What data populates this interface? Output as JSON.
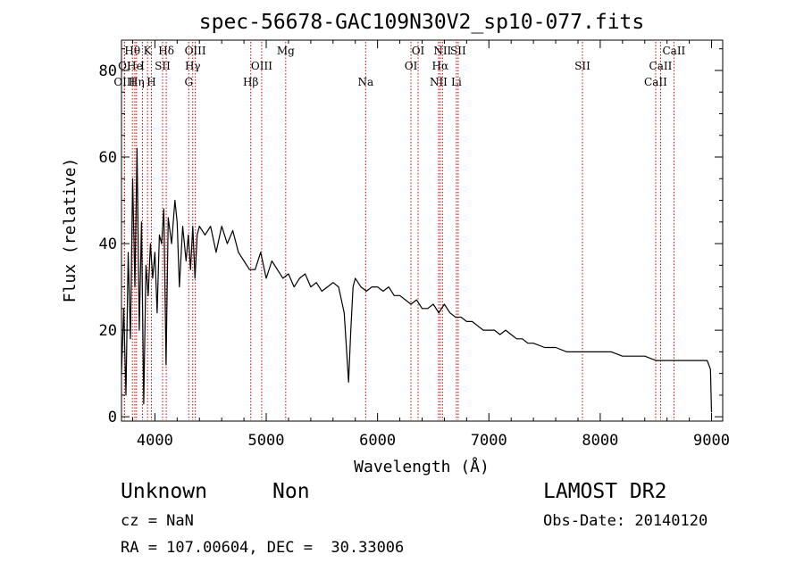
{
  "chart_data": {
    "type": "line",
    "title": "spec-56678-GAC109N30V2_sp10-077.fits",
    "xlabel": "Wavelength (Å)",
    "ylabel": "Flux (relative)",
    "xlim": [
      3700,
      9100
    ],
    "ylim": [
      -1,
      87
    ],
    "x_ticks": [
      4000,
      5000,
      6000,
      7000,
      8000,
      9000
    ],
    "y_ticks": [
      0,
      20,
      40,
      60,
      80
    ],
    "grid": false,
    "line_color": "#000000",
    "marker_color": "#cc0000",
    "series": [
      {
        "x": [
          3700,
          3720,
          3740,
          3760,
          3780,
          3800,
          3820,
          3840,
          3860,
          3880,
          3900,
          3920,
          3940,
          3960,
          3980,
          4000,
          4020,
          4040,
          4060,
          4080,
          4100,
          4120,
          4150,
          4180,
          4200,
          4220,
          4250,
          4280,
          4300,
          4320,
          4340,
          4360,
          4380,
          4400,
          4450,
          4500,
          4550,
          4600,
          4650,
          4700,
          4750,
          4800,
          4850,
          4900,
          4950,
          5000,
          5050,
          5100,
          5150,
          5200,
          5250,
          5300,
          5350,
          5400,
          5450,
          5500,
          5550,
          5600,
          5650,
          5700,
          5740,
          5760,
          5780,
          5800,
          5850,
          5900,
          5950,
          6000,
          6050,
          6100,
          6150,
          6200,
          6250,
          6300,
          6350,
          6400,
          6450,
          6500,
          6550,
          6600,
          6650,
          6700,
          6750,
          6800,
          6850,
          6900,
          6950,
          7000,
          7050,
          7100,
          7150,
          7200,
          7250,
          7300,
          7350,
          7400,
          7500,
          7600,
          7700,
          7800,
          7900,
          8000,
          8100,
          8200,
          8300,
          8400,
          8500,
          8600,
          8700,
          8800,
          8900,
          8960,
          8990,
          9000
        ],
        "y": [
          10,
          25,
          5,
          38,
          18,
          55,
          30,
          62,
          20,
          45,
          3,
          35,
          28,
          40,
          32,
          38,
          24,
          42,
          40,
          48,
          12,
          46,
          40,
          50,
          45,
          30,
          44,
          36,
          42,
          34,
          44,
          32,
          42,
          44,
          42,
          44,
          38,
          44,
          40,
          43,
          38,
          36,
          34,
          34,
          38,
          32,
          36,
          34,
          32,
          33,
          30,
          32,
          33,
          30,
          31,
          29,
          30,
          31,
          30,
          24,
          8,
          20,
          30,
          32,
          30,
          29,
          30,
          30,
          29,
          30,
          28,
          28,
          27,
          26,
          27,
          25,
          25,
          26,
          24,
          26,
          24,
          23,
          23,
          22,
          22,
          21,
          20,
          20,
          20,
          19,
          20,
          19,
          18,
          18,
          17,
          17,
          16,
          16,
          15,
          15,
          15,
          15,
          15,
          14,
          14,
          14,
          13,
          13,
          13,
          13,
          13,
          13,
          11,
          1
        ]
      }
    ],
    "lines": [
      {
        "label": "Hθ",
        "x": 3798,
        "row": 0
      },
      {
        "label": "K",
        "x": 3934,
        "row": 0
      },
      {
        "label": "Hδ",
        "x": 4102,
        "row": 0
      },
      {
        "label": "OIII",
        "x": 4363,
        "row": 0
      },
      {
        "label": "Mg",
        "x": 5175,
        "row": 0
      },
      {
        "label": "OI",
        "x": 6364,
        "row": 0
      },
      {
        "label": "NII",
        "x": 6583,
        "row": 0
      },
      {
        "label": "SII",
        "x": 6724,
        "row": 0
      },
      {
        "label": "CaII",
        "x": 8662,
        "row": 0
      },
      {
        "label": "OI",
        "x": 3727,
        "row": 1
      },
      {
        "label": "He",
        "x": 3820,
        "row": 1
      },
      {
        "label": "I",
        "x": 3889,
        "row": 1
      },
      {
        "label": "SII",
        "x": 4069,
        "row": 1
      },
      {
        "label": "Hγ",
        "x": 4340,
        "row": 1
      },
      {
        "label": "OIII",
        "x": 4959,
        "row": 1
      },
      {
        "label": "OI",
        "x": 6300,
        "row": 1
      },
      {
        "label": "Hα",
        "x": 6563,
        "row": 1
      },
      {
        "label": "SII",
        "x": 7840,
        "row": 1
      },
      {
        "label": "CaII",
        "x": 8542,
        "row": 1
      },
      {
        "label": "OIII",
        "x": 3727,
        "row": 2
      },
      {
        "label": "Hη",
        "x": 3835,
        "row": 2
      },
      {
        "label": "H",
        "x": 3969,
        "row": 2
      },
      {
        "label": "G",
        "x": 4304,
        "row": 2
      },
      {
        "label": "Hβ",
        "x": 4861,
        "row": 2
      },
      {
        "label": "Na",
        "x": 5893,
        "row": 2
      },
      {
        "label": "NII",
        "x": 6548,
        "row": 2
      },
      {
        "label": "Li",
        "x": 6708,
        "row": 2
      },
      {
        "label": "CaII",
        "x": 8498,
        "row": 2
      }
    ]
  },
  "info": {
    "class": "Unknown",
    "subclass": "Non",
    "survey": "LAMOST DR2",
    "cz": "cz = NaN",
    "obs_date": "Obs-Date: 20140120",
    "coords": "RA = 107.00604, DEC =  30.33006"
  }
}
